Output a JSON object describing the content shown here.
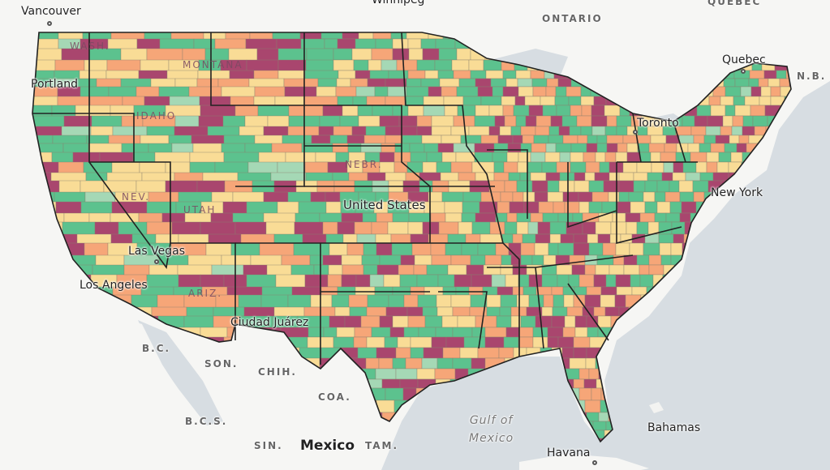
{
  "map": {
    "colors": {
      "land_base": "#f6f6f4",
      "water": "#d7dde2",
      "county_border": "#8a7f6d",
      "state_border": "#222222",
      "classes": [
        "#5cc28e",
        "#f9dc96",
        "#f6a678",
        "#a9466e",
        "#a5d8b5"
      ]
    },
    "labels": {
      "cities": {
        "vancouver": "Vancouver",
        "winnipeg": "Winnipeg",
        "quebec": "Quebec",
        "toronto": "Toronto",
        "new_york": "New York",
        "portland": "Portland",
        "las_vegas": "Las Vegas",
        "los_angeles": "Los Angeles",
        "ciudad_juarez": "Ciudad Juárez",
        "havana": "Havana",
        "bahamas": "Bahamas",
        "united_states": "United States"
      },
      "regions": {
        "ontario": "ONTARIO",
        "quebec_prov": "QUEBEC",
        "nb": "N.B.",
        "bc": "B.C.",
        "son": "SON.",
        "chih": "CHIH.",
        "coa": "COA.",
        "bcs": "B.C.S.",
        "sin": "SIN.",
        "tam": "TAM."
      },
      "states": {
        "wash": "WASH.",
        "mont": "MONTANA",
        "idaho": "IDAHO",
        "nev": "NEV.",
        "utah": "UTAH",
        "ariz": "ARIZ.",
        "nebr": "NEBR."
      },
      "country": {
        "mexico": "Mexico"
      },
      "water": {
        "gulf": "Gulf of\nMexico"
      }
    }
  }
}
